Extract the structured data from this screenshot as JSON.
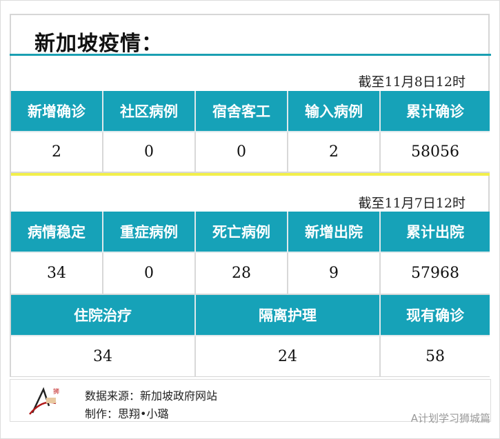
{
  "title": "新加坡疫情：",
  "section1": {
    "date": "截至11月8日12时",
    "headers": [
      "新增确诊",
      "社区病例",
      "宿舍客工",
      "输入病例",
      "累计确诊"
    ],
    "values": [
      "2",
      "0",
      "0",
      "2",
      "58056"
    ]
  },
  "section2": {
    "date": "截至11月7日12时",
    "headers": [
      "病情稳定",
      "重症病例",
      "死亡病例",
      "新增出院",
      "累计出院"
    ],
    "values": [
      "34",
      "0",
      "28",
      "9",
      "57968"
    ],
    "headers2": [
      "住院治疗",
      "隔离护理",
      "现有确诊"
    ],
    "values2": [
      "34",
      "24",
      "58"
    ]
  },
  "footer": {
    "source": "数据来源：新加坡政府网站",
    "author": "制作：思翔•小璐",
    "watermark": "A计划学习狮城篇",
    "logo_text": "学习狮城篇"
  },
  "colors": {
    "header": "#16a2b8",
    "divider": "#f2ef4a"
  }
}
